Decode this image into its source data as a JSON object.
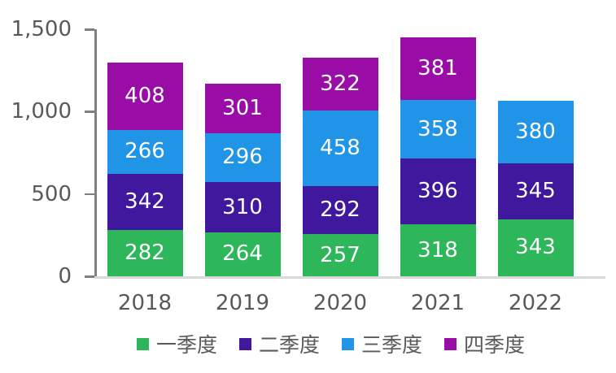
{
  "chart_data": {
    "type": "bar",
    "stacked": true,
    "title": "",
    "categories": [
      "2018",
      "2019",
      "2020",
      "2021",
      "2022"
    ],
    "series": [
      {
        "name": "一季度",
        "color": "#2eb65a",
        "values": [
          282,
          264,
          257,
          318,
          343
        ]
      },
      {
        "name": "二季度",
        "color": "#40189d",
        "values": [
          342,
          310,
          292,
          396,
          345
        ]
      },
      {
        "name": "三季度",
        "color": "#2095e8",
        "values": [
          266,
          296,
          458,
          358,
          380
        ]
      },
      {
        "name": "四季度",
        "color": "#990da6",
        "values": [
          408,
          301,
          322,
          381,
          null
        ]
      }
    ],
    "totals": [
      1298,
      1171,
      1329,
      1453,
      1068
    ],
    "ylim": [
      0,
      1500
    ],
    "yticks": [
      {
        "value": 0,
        "label": "0"
      },
      {
        "value": 500,
        "label": "500"
      },
      {
        "value": 1000,
        "label": "1,000"
      },
      {
        "value": 1500,
        "label": "1,500"
      }
    ],
    "xlabel": "",
    "ylabel": "",
    "grid": false,
    "data_labels": true,
    "legend_position": "bottom",
    "colors": {
      "axis_line": "#7f7f7f",
      "baseline": "#d9d9d9",
      "tick_label": "#595959",
      "data_label": "#ffffff",
      "legend_text": "#595959",
      "background": "#ffffff"
    }
  }
}
